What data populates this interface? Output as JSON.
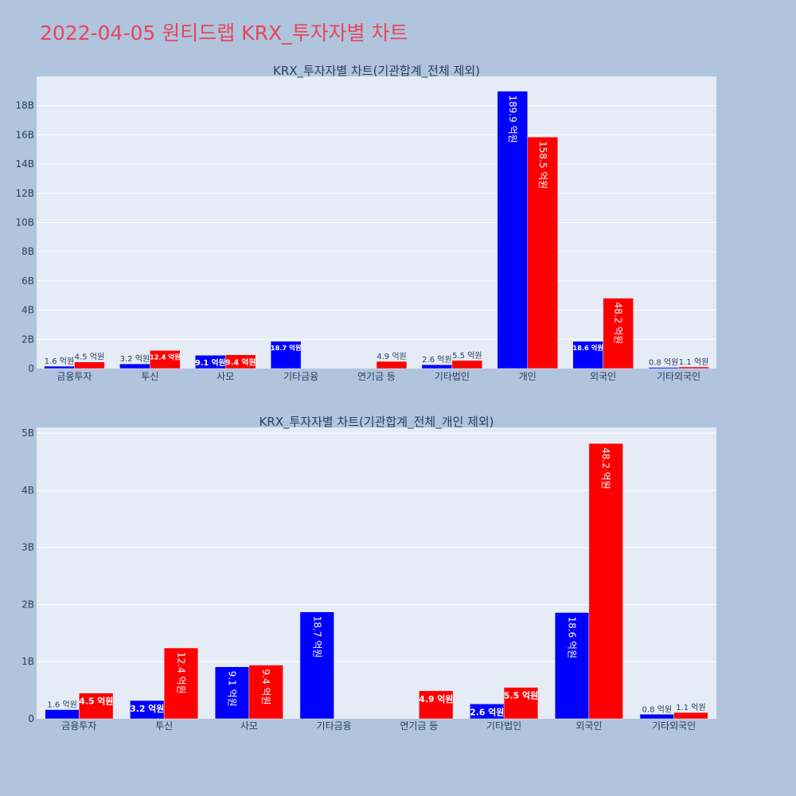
{
  "page_title": "2022-04-05 원티드랩 KRX_투자자별 차트",
  "colors": {
    "series_a": "#0000ff",
    "series_b": "#ff0000",
    "plot_bg": "#e5ecf6",
    "grid": "#ffffff"
  },
  "chart_data": [
    {
      "type": "bar",
      "title": "KRX_투자자별 차트(기관합계_전체 제외)",
      "categories": [
        "금융투자",
        "투신",
        "사모",
        "기타금융",
        "연기금 등",
        "기타법인",
        "개인",
        "외국인",
        "기타외국인"
      ],
      "y_ticks": [
        "0",
        "2B",
        "4B",
        "6B",
        "8B",
        "10B",
        "12B",
        "14B",
        "16B",
        "18B"
      ],
      "ylim": [
        0,
        20000000000
      ],
      "grid": true,
      "series": [
        {
          "values": [
            160000000,
            320000000,
            910000000,
            1870000000,
            0,
            260000000,
            18990000000,
            1860000000,
            80000000
          ],
          "labels": [
            "1.6 억원",
            "3.2 억원",
            "9.1 억원",
            "18.7 억원",
            "",
            "2.6 억원",
            "189.9 억원",
            "18.6 억원",
            "0.8 억원"
          ]
        },
        {
          "values": [
            450000000,
            1240000000,
            940000000,
            0,
            490000000,
            550000000,
            15850000000,
            4820000000,
            110000000
          ],
          "labels": [
            "4.5 억원",
            "12.4 억원",
            "9.4 억원",
            "",
            "4.9 억원",
            "5.5 억원",
            "158.5 억원",
            "48.2 억원",
            "1.1 억원"
          ]
        }
      ]
    },
    {
      "type": "bar",
      "title": "KRX_투자자별 차트(기관합계_전체_개인 제외)",
      "categories": [
        "금융투자",
        "투신",
        "사모",
        "기타금융",
        "연기금 등",
        "기타법인",
        "외국인",
        "기타외국인"
      ],
      "y_ticks": [
        "0",
        "1B",
        "2B",
        "3B",
        "4B",
        "5B"
      ],
      "ylim": [
        0,
        5100000000
      ],
      "grid": true,
      "series": [
        {
          "values": [
            160000000,
            320000000,
            910000000,
            1870000000,
            0,
            260000000,
            1860000000,
            80000000
          ],
          "labels": [
            "1.6 억원",
            "3.2 억원",
            "9.1 억원",
            "18.7 억원",
            "",
            "2.6 억원",
            "18.6 억원",
            "0.8 억원"
          ]
        },
        {
          "values": [
            450000000,
            1240000000,
            940000000,
            0,
            490000000,
            550000000,
            4820000000,
            110000000
          ],
          "labels": [
            "4.5 억원",
            "12.4 억원",
            "9.4 억원",
            "",
            "4.9 억원",
            "5.5 억원",
            "48.2 억원",
            "1.1 억원"
          ]
        }
      ]
    }
  ]
}
